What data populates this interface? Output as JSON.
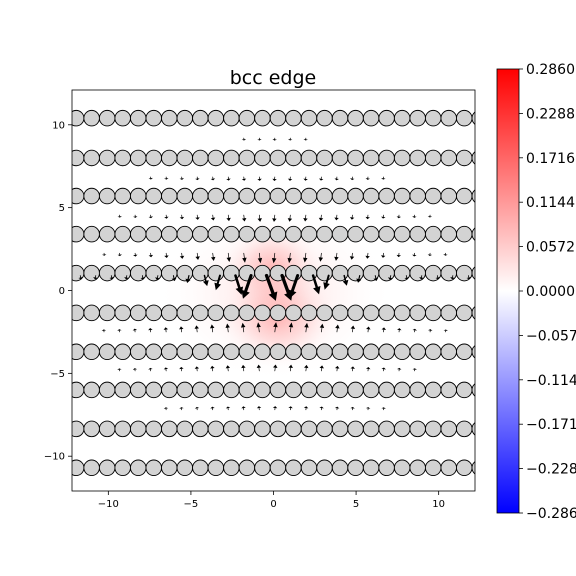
{
  "chart_data": {
    "type": "heatmap",
    "title": "bcc edge",
    "xlim": [
      -12.2,
      12.2
    ],
    "ylim": [
      -12.1,
      12.1
    ],
    "x_ticks": [
      -10,
      -5,
      0,
      5,
      10
    ],
    "y_ticks": [
      -10,
      -5,
      0,
      5,
      10
    ],
    "x_tick_labels": [
      "−10",
      "−5",
      "0",
      "5",
      "10"
    ],
    "y_tick_labels": [
      "−10",
      "−5",
      "0",
      "5",
      "10"
    ],
    "colorbar": {
      "colormap": "bwr",
      "min": -0.286,
      "max": 0.286,
      "ticks": [
        0.286,
        0.2288,
        0.1716,
        0.1144,
        0.0572,
        0.0,
        -0.0572,
        -0.1144,
        -0.1716,
        -0.2288,
        -0.286
      ],
      "tick_labels": [
        "0.2860",
        "0.2288",
        "0.1716",
        "0.1144",
        "0.0572",
        "0.0000",
        "−0.0572",
        "−0.1144",
        "−0.1716",
        "−0.2288",
        "−0.2860"
      ]
    },
    "atom_rows": [
      {
        "y": 10.4,
        "x_start": -11.95
      },
      {
        "y": 8.0,
        "x_start": -11.95
      },
      {
        "y": 5.7,
        "x_start": -11.95
      },
      {
        "y": 3.4,
        "x_start": -11.95
      },
      {
        "y": 1.05,
        "x_start": -11.95
      },
      {
        "y": -1.35,
        "x_start": -11.95
      },
      {
        "y": -3.7,
        "x_start": -11.95
      },
      {
        "y": -6.0,
        "x_start": -11.95
      },
      {
        "y": -8.35,
        "x_start": -11.95
      },
      {
        "y": -10.7,
        "x_start": -11.95
      }
    ],
    "atom_spacing": 0.94,
    "atom_color": "#d3d3d3",
    "colors": {
      "positive": "#ff0000",
      "negative": "#0000ff",
      "arrow": "#000000"
    }
  }
}
